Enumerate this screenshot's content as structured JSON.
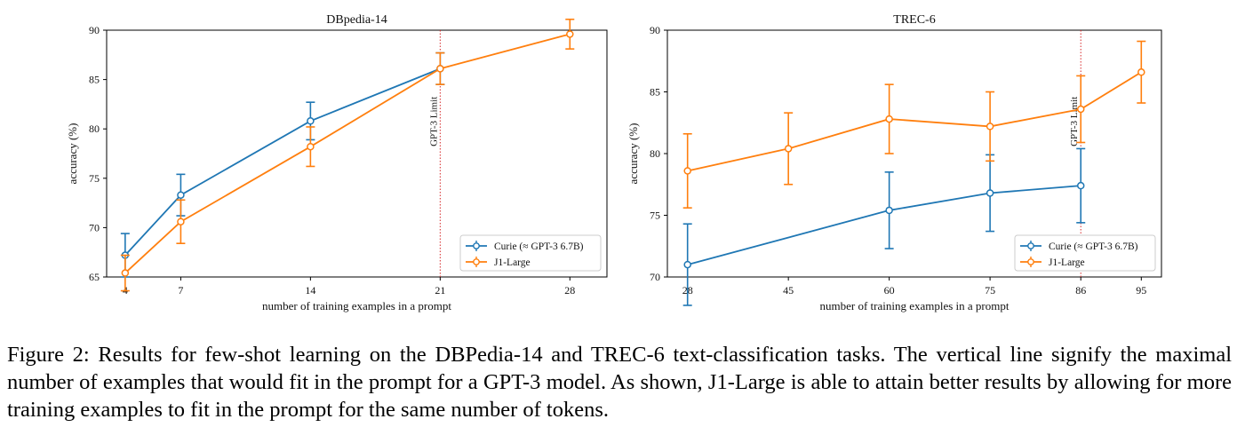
{
  "chart_data": [
    {
      "type": "line",
      "title": "DBpedia-14",
      "xlabel": "number of training examples in a prompt",
      "ylabel": "accuracy (%)",
      "xlim": [
        3,
        30
      ],
      "ylim": [
        65,
        90
      ],
      "xticks": [
        4,
        7,
        14,
        21,
        28
      ],
      "yticks": [
        65,
        70,
        75,
        80,
        85,
        90
      ],
      "x_positions": [
        4,
        7,
        14,
        21,
        28
      ],
      "grid": false,
      "legend_position": "bottom-right",
      "vline": {
        "x": 21,
        "label": "GPT-3 Limit",
        "color": "#d62728"
      },
      "series": [
        {
          "name": "Curie (≈ GPT-3 6.7B)",
          "color": "#1f77b4",
          "x": [
            4,
            7,
            14,
            21
          ],
          "y": [
            67.2,
            73.3,
            80.8,
            86.1
          ],
          "err": [
            2.2,
            2.1,
            1.9,
            1.6
          ]
        },
        {
          "name": "J1-Large",
          "color": "#ff7f0e",
          "x": [
            4,
            7,
            14,
            21,
            28
          ],
          "y": [
            65.4,
            70.6,
            78.2,
            86.1,
            89.6
          ],
          "err": [
            1.8,
            2.2,
            2.0,
            1.6,
            1.5
          ]
        }
      ]
    },
    {
      "type": "line",
      "title": "TREC-6",
      "xlabel": "number of training examples in a prompt",
      "ylabel": "accuracy (%)",
      "xlim": [
        -0.2,
        4.7
      ],
      "ylim": [
        70,
        90
      ],
      "xticks": [
        28,
        45,
        60,
        75,
        86,
        95
      ],
      "yticks": [
        70,
        75,
        80,
        85,
        90
      ],
      "x_positions": [
        0,
        1,
        2,
        3,
        3.9,
        4.5
      ],
      "grid": false,
      "legend_position": "bottom-right",
      "vline": {
        "x": 86,
        "label": "GPT-3 Limit",
        "color": "#d62728"
      },
      "series": [
        {
          "name": "Curie (≈ GPT-3 6.7B)",
          "color": "#1f77b4",
          "x": [
            28,
            60,
            75,
            86
          ],
          "y": [
            71.0,
            75.4,
            76.8,
            77.4
          ],
          "err": [
            3.3,
            3.1,
            3.1,
            3.0
          ]
        },
        {
          "name": "J1-Large",
          "color": "#ff7f0e",
          "x": [
            28,
            45,
            60,
            75,
            86,
            95
          ],
          "y": [
            78.6,
            80.4,
            82.8,
            82.2,
            83.6,
            86.6
          ],
          "err": [
            3.0,
            2.9,
            2.8,
            2.8,
            2.7,
            2.5
          ]
        }
      ]
    }
  ],
  "caption": "Figure 2: Results for few-shot learning on the DBPedia-14 and TREC-6 text-classification tasks. The vertical line signify the maximal number of examples that would fit in the prompt for a GPT-3 model. As shown, J1-Large is able to attain better results by allowing for more training examples to fit in the prompt for the same number of tokens."
}
